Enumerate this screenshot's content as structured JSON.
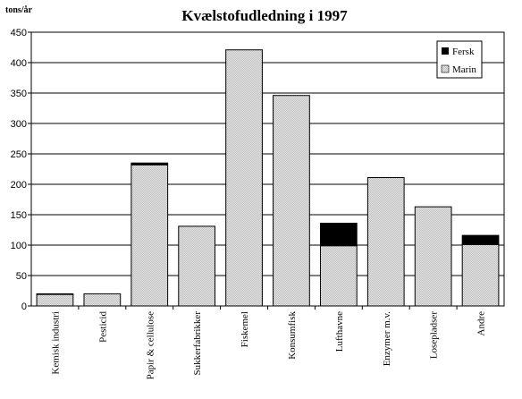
{
  "chart_data": {
    "type": "bar",
    "stacked": true,
    "title": "Kvælstofudledning i 1997",
    "ylabel": "tons/år",
    "ylim": [
      0,
      450
    ],
    "yticks": [
      0,
      50,
      100,
      150,
      200,
      250,
      300,
      350,
      400,
      450
    ],
    "grid": true,
    "legend_position": "top-right",
    "categories": [
      "Kemisk industri",
      "Pesticid",
      "Papir & cellulose",
      "Sukkerfabrikker",
      "Fiskemel",
      "Konsumfisk",
      "Lufthavne",
      "Enzymer m.v.",
      "Losepladser",
      "Andre"
    ],
    "series": [
      {
        "name": "Fersk",
        "color": "#000000",
        "values": [
          1,
          0,
          3,
          0,
          0,
          0,
          37,
          0,
          0,
          15
        ]
      },
      {
        "name": "Marin",
        "color": "#c8c8c8",
        "values": [
          19,
          20,
          232,
          131,
          421,
          346,
          99,
          211,
          163,
          101
        ]
      }
    ]
  }
}
